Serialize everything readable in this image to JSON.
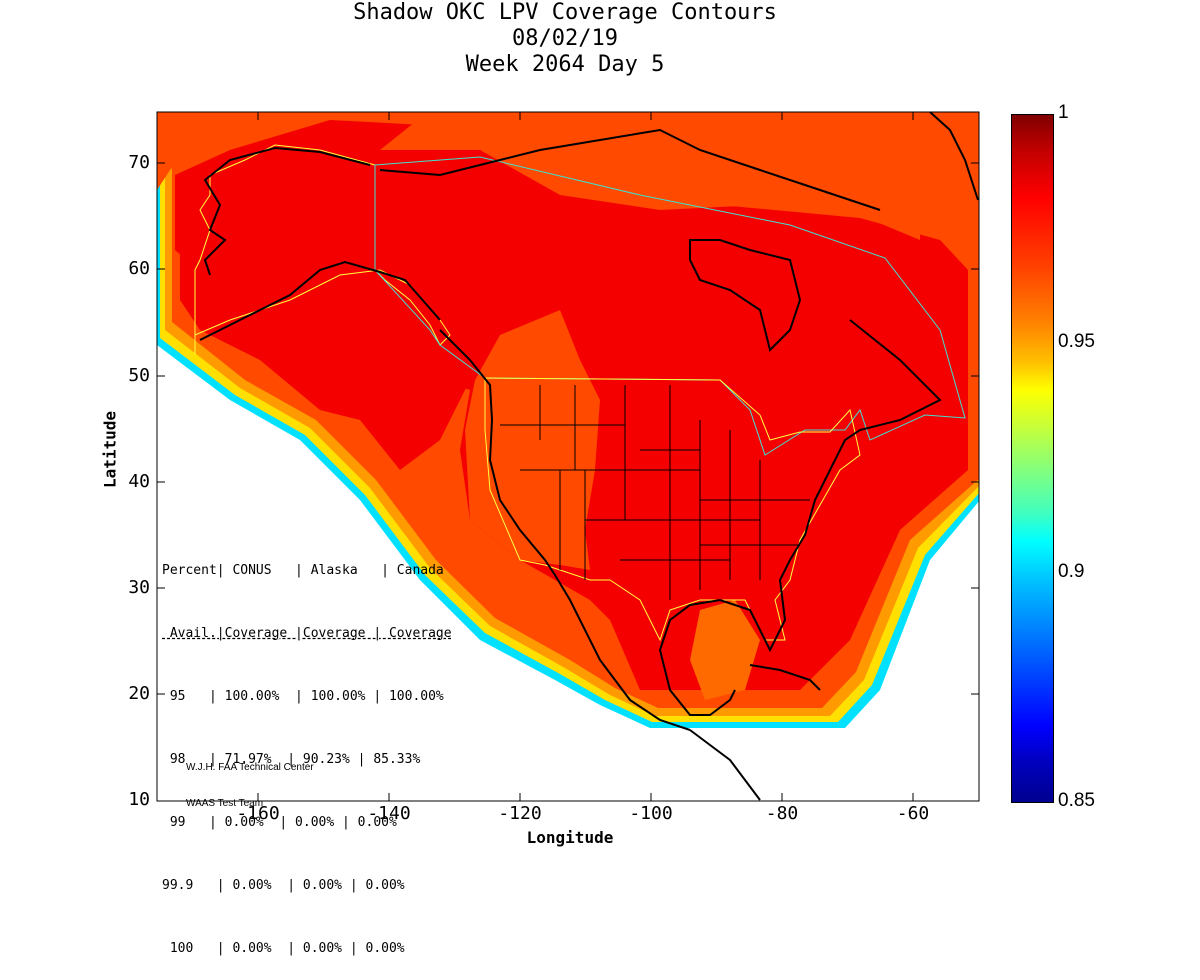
{
  "title": {
    "line1": "Shadow OKC LPV Coverage Contours",
    "line2": "08/02/19",
    "line3": "Week 2064 Day 5"
  },
  "axes": {
    "xlabel": "Longitude",
    "ylabel": "Latitude",
    "xlim": [
      -174,
      -50
    ],
    "ylim": [
      10,
      75
    ],
    "xticks": [
      "-160",
      "-140",
      "-120",
      "-100",
      "-80",
      "-60"
    ],
    "yticks": [
      "70",
      "60",
      "50",
      "40",
      "30",
      "20",
      "10"
    ]
  },
  "colorbar": {
    "range": [
      0.85,
      1
    ],
    "ticks": [
      "1",
      "0.95",
      "0.9",
      "0.85"
    ]
  },
  "stats_table": {
    "header1": "Percent| CONUS   | Alaska   | Canada",
    "header2": " Avail.|Coverage |Coverage | Coverage",
    "rows": [
      " 95   | 100.00%  | 100.00% | 100.00%",
      " 98   | 71.97%  | 90.23% | 85.33%",
      " 99   | 0.00%  | 0.00% | 0.00%",
      "99.9   | 0.00%  | 0.00% | 0.00%",
      " 100   | 0.00%  | 0.00% | 0.00%"
    ]
  },
  "credit": {
    "line1": "W.J.H. FAA Technical Center",
    "line2": "WAAS Test Team"
  },
  "colors": {
    "high": "#ff0000",
    "mid_high": "#ff4000",
    "medium": "#ff8000",
    "low_edge": "#00c0ff",
    "boundary": "#ffff00",
    "coast": "#000000"
  }
}
